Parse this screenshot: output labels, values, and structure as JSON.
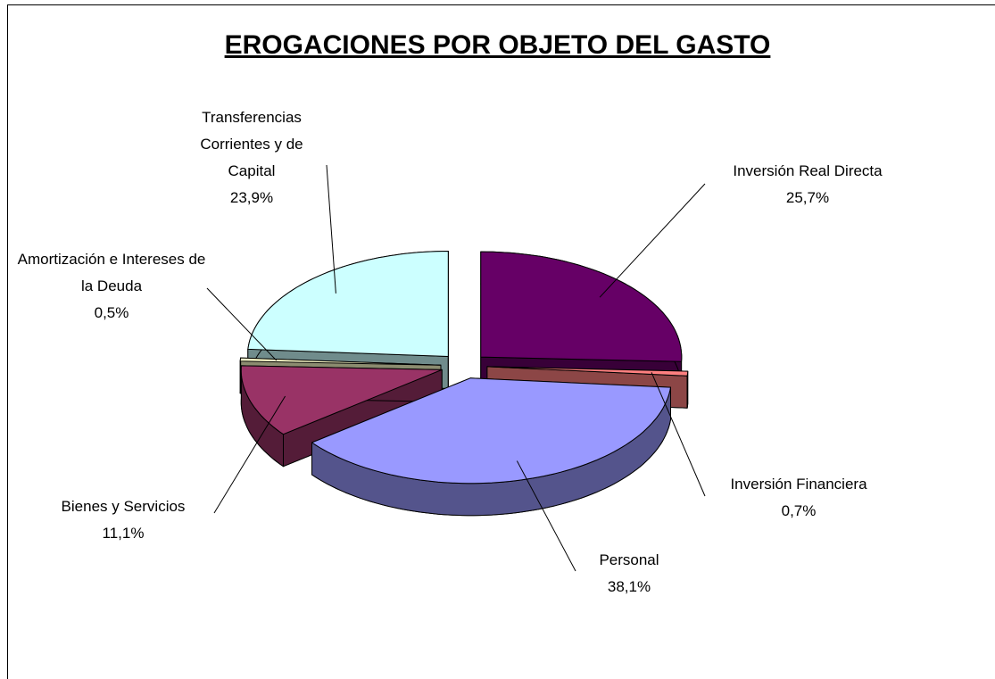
{
  "chart_data": {
    "type": "pie",
    "title": "EROGACIONES POR OBJETO DEL GASTO",
    "categories": [
      "Inversión Real Directa",
      "Inversión Financiera",
      "Personal",
      "Bienes y Servicios",
      "Amortización e Intereses de la Deuda",
      "Transferencias Corrientes y de Capital"
    ],
    "values": [
      25.7,
      0.7,
      38.1,
      11.1,
      0.5,
      23.9
    ],
    "value_labels": [
      "25,7%",
      "0,7%",
      "38,1%",
      "11,1%",
      "0,5%",
      "23,9%"
    ],
    "colors": [
      "#660066",
      "#ff8080",
      "#9999ff",
      "#993366",
      "#ffffcc",
      "#ccffff"
    ]
  }
}
